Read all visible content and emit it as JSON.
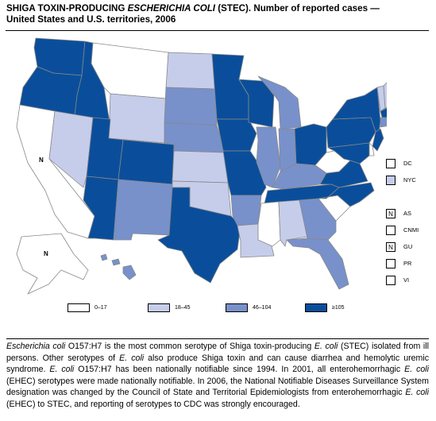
{
  "title": {
    "part1": "SHIGA TOXIN-PRODUCING ",
    "italic": "ESCHERICHIA COLI",
    "part2": " (STEC). Number of reported cases —",
    "line2": "United States and U.S. territories, 2006"
  },
  "colors": {
    "c1": "#ffffff",
    "c2": "#c6cdeb",
    "c3": "#7891cb",
    "c4": "#0a4e9b",
    "border": "#888888"
  },
  "legend": [
    {
      "label": "0–17",
      "color": "#ffffff"
    },
    {
      "label": "18–45",
      "color": "#c6cdeb"
    },
    {
      "label": "46–104",
      "color": "#7891cb"
    },
    {
      "label": "≥105",
      "color": "#0a4e9b"
    }
  ],
  "territories": [
    {
      "code": "DC",
      "mark": "",
      "color": "#ffffff"
    },
    {
      "code": "NYC",
      "mark": "",
      "color": "#c6cdeb"
    },
    {
      "code": "AS",
      "mark": "N",
      "color": "#ffffff"
    },
    {
      "code": "CNMI",
      "mark": "",
      "color": "#ffffff"
    },
    {
      "code": "GU",
      "mark": "N",
      "color": "#ffffff"
    },
    {
      "code": "PR",
      "mark": "",
      "color": "#ffffff"
    },
    {
      "code": "VI",
      "mark": "",
      "color": "#ffffff"
    }
  ],
  "map_marks": {
    "california": "N",
    "alaska": "N",
    "hampshire": "N"
  },
  "caption": {
    "s1": "Escherichia coli",
    "s2": " O157:H7 is the most common serotype of Shiga toxin-producing ",
    "s3": "E. coli",
    "s4": " (STEC) isolated from ill persons. Other serotypes of ",
    "s5": "E. coli",
    "s6": " also produce Shiga toxin and can cause diarrhea and hemolytic uremic syndrome. ",
    "s7": "E. coli",
    "s8": " O157:H7 has been nationally notifiable since 1994. In 2001, all enterohemorrhagic ",
    "s9": "E. coli",
    "s10": " (EHEC) serotypes were made nationally notifiable. In 2006, the National Notifiable Diseases Surveillance System designation was changed by the Council of State and Territorial Epidemiologists from enterohemorrhagic ",
    "s11": "E. coli",
    "s12": " (EHEC) to STEC, and reporting of serotypes to CDC was strongly encouraged."
  },
  "states": [
    {
      "id": "WA",
      "level": 4
    },
    {
      "id": "OR",
      "level": 4
    },
    {
      "id": "CA",
      "level": 1
    },
    {
      "id": "ID",
      "level": 4
    },
    {
      "id": "NV",
      "level": 2
    },
    {
      "id": "MT",
      "level": 1
    },
    {
      "id": "WY",
      "level": 2
    },
    {
      "id": "UT",
      "level": 4
    },
    {
      "id": "AZ",
      "level": 4
    },
    {
      "id": "CO",
      "level": 4
    },
    {
      "id": "NM",
      "level": 3
    },
    {
      "id": "ND",
      "level": 2
    },
    {
      "id": "SD",
      "level": 3
    },
    {
      "id": "NE",
      "level": 3
    },
    {
      "id": "KS",
      "level": 2
    },
    {
      "id": "OK",
      "level": 2
    },
    {
      "id": "TX",
      "level": 4
    },
    {
      "id": "MN",
      "level": 4
    },
    {
      "id": "IA",
      "level": 4
    },
    {
      "id": "MO",
      "level": 4
    },
    {
      "id": "AR",
      "level": 3
    },
    {
      "id": "LA",
      "level": 2
    },
    {
      "id": "WI",
      "level": 4
    },
    {
      "id": "IL",
      "level": 3
    },
    {
      "id": "MI",
      "level": 3
    },
    {
      "id": "IN",
      "level": 3
    },
    {
      "id": "OH",
      "level": 4
    },
    {
      "id": "KY",
      "level": 3
    },
    {
      "id": "TN",
      "level": 4
    },
    {
      "id": "MS",
      "level": 1
    },
    {
      "id": "AL",
      "level": 2
    },
    {
      "id": "GA",
      "level": 3
    },
    {
      "id": "FL",
      "level": 3
    },
    {
      "id": "SC",
      "level": 1
    },
    {
      "id": "NC",
      "level": 4
    },
    {
      "id": "VA",
      "level": 4
    },
    {
      "id": "WV",
      "level": 1
    },
    {
      "id": "PA",
      "level": 4
    },
    {
      "id": "NY",
      "level": 4
    },
    {
      "id": "ME",
      "level": 3
    },
    {
      "id": "VT",
      "level": 2
    },
    {
      "id": "NH",
      "level": 2
    },
    {
      "id": "MA",
      "level": 4
    },
    {
      "id": "CT",
      "level": 3
    },
    {
      "id": "NJ",
      "level": 4
    },
    {
      "id": "MD",
      "level": 4
    },
    {
      "id": "DE",
      "level": 1
    },
    {
      "id": "RI",
      "level": 1
    },
    {
      "id": "AK",
      "level": 1
    },
    {
      "id": "HI",
      "level": 3
    }
  ]
}
